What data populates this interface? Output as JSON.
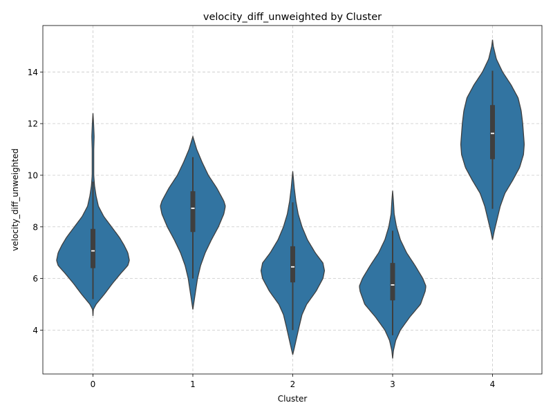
{
  "chart_data": {
    "type": "violin",
    "title": "velocity_diff_unweighted by Cluster",
    "xlabel": "Cluster",
    "ylabel": "velocity_diff_unweighted",
    "categories": [
      "0",
      "1",
      "2",
      "3",
      "4"
    ],
    "ylim": [
      2.3,
      15.8
    ],
    "yticks": [
      4,
      6,
      8,
      10,
      12,
      14
    ],
    "grid": true,
    "color": "#3274a1",
    "edge_color": "#3f3f3f",
    "violins": [
      {
        "category": "0",
        "median": 7.07,
        "q1": 6.4,
        "q3": 7.92,
        "whisker_low": 5.2,
        "whisker_high": 9.75,
        "profile": [
          [
            4.55,
            0
          ],
          [
            4.8,
            0.005
          ],
          [
            5.0,
            0.04
          ],
          [
            5.4,
            0.15
          ],
          [
            5.8,
            0.25
          ],
          [
            6.2,
            0.36
          ],
          [
            6.5,
            0.45
          ],
          [
            6.7,
            0.47
          ],
          [
            7.0,
            0.45
          ],
          [
            7.3,
            0.4
          ],
          [
            7.6,
            0.34
          ],
          [
            8.0,
            0.24
          ],
          [
            8.4,
            0.14
          ],
          [
            8.8,
            0.07
          ],
          [
            9.2,
            0.04
          ],
          [
            9.6,
            0.02
          ],
          [
            10.0,
            0.01
          ],
          [
            10.5,
            0.01
          ],
          [
            11.0,
            0.01
          ],
          [
            11.5,
            0.015
          ],
          [
            12.0,
            0.008
          ],
          [
            12.4,
            0
          ]
        ]
      },
      {
        "category": "1",
        "median": 8.72,
        "q1": 7.8,
        "q3": 9.38,
        "whisker_low": 6.0,
        "whisker_high": 10.7,
        "profile": [
          [
            4.8,
            0
          ],
          [
            5.0,
            0.01
          ],
          [
            5.4,
            0.03
          ],
          [
            6.0,
            0.06
          ],
          [
            6.5,
            0.1
          ],
          [
            7.0,
            0.16
          ],
          [
            7.5,
            0.24
          ],
          [
            8.0,
            0.33
          ],
          [
            8.5,
            0.4
          ],
          [
            8.8,
            0.42
          ],
          [
            9.0,
            0.4
          ],
          [
            9.5,
            0.31
          ],
          [
            10.0,
            0.2
          ],
          [
            10.5,
            0.12
          ],
          [
            11.0,
            0.05
          ],
          [
            11.5,
            0
          ]
        ]
      },
      {
        "category": "2",
        "median": 6.45,
        "q1": 5.85,
        "q3": 7.25,
        "whisker_low": 4.0,
        "whisker_high": 8.95,
        "profile": [
          [
            3.05,
            0
          ],
          [
            3.3,
            0.02
          ],
          [
            3.7,
            0.05
          ],
          [
            4.1,
            0.08
          ],
          [
            4.6,
            0.12
          ],
          [
            5.0,
            0.18
          ],
          [
            5.5,
            0.3
          ],
          [
            6.0,
            0.39
          ],
          [
            6.3,
            0.41
          ],
          [
            6.6,
            0.39
          ],
          [
            7.0,
            0.29
          ],
          [
            7.5,
            0.19
          ],
          [
            8.0,
            0.12
          ],
          [
            8.5,
            0.07
          ],
          [
            9.0,
            0.04
          ],
          [
            9.5,
            0.02
          ],
          [
            10.15,
            0
          ]
        ]
      },
      {
        "category": "3",
        "median": 5.75,
        "q1": 5.15,
        "q3": 6.6,
        "whisker_low": 3.8,
        "whisker_high": 7.85,
        "profile": [
          [
            2.9,
            0
          ],
          [
            3.2,
            0.01
          ],
          [
            3.6,
            0.04
          ],
          [
            4.0,
            0.1
          ],
          [
            4.5,
            0.22
          ],
          [
            5.0,
            0.36
          ],
          [
            5.5,
            0.42
          ],
          [
            5.7,
            0.43
          ],
          [
            6.0,
            0.39
          ],
          [
            6.5,
            0.29
          ],
          [
            7.0,
            0.18
          ],
          [
            7.5,
            0.1
          ],
          [
            8.0,
            0.05
          ],
          [
            8.5,
            0.02
          ],
          [
            9.0,
            0.01
          ],
          [
            9.4,
            0
          ]
        ]
      },
      {
        "category": "4",
        "median": 11.62,
        "q1": 10.62,
        "q3": 12.72,
        "whisker_low": 8.7,
        "whisker_high": 14.05,
        "profile": [
          [
            7.5,
            0
          ],
          [
            7.8,
            0.02
          ],
          [
            8.3,
            0.06
          ],
          [
            8.8,
            0.1
          ],
          [
            9.3,
            0.16
          ],
          [
            9.8,
            0.26
          ],
          [
            10.3,
            0.35
          ],
          [
            10.8,
            0.4
          ],
          [
            11.2,
            0.41
          ],
          [
            11.6,
            0.4
          ],
          [
            12.0,
            0.39
          ],
          [
            12.5,
            0.37
          ],
          [
            13.0,
            0.33
          ],
          [
            13.5,
            0.24
          ],
          [
            14.0,
            0.13
          ],
          [
            14.5,
            0.05
          ],
          [
            15.0,
            0.01
          ],
          [
            15.25,
            0
          ]
        ]
      }
    ]
  }
}
